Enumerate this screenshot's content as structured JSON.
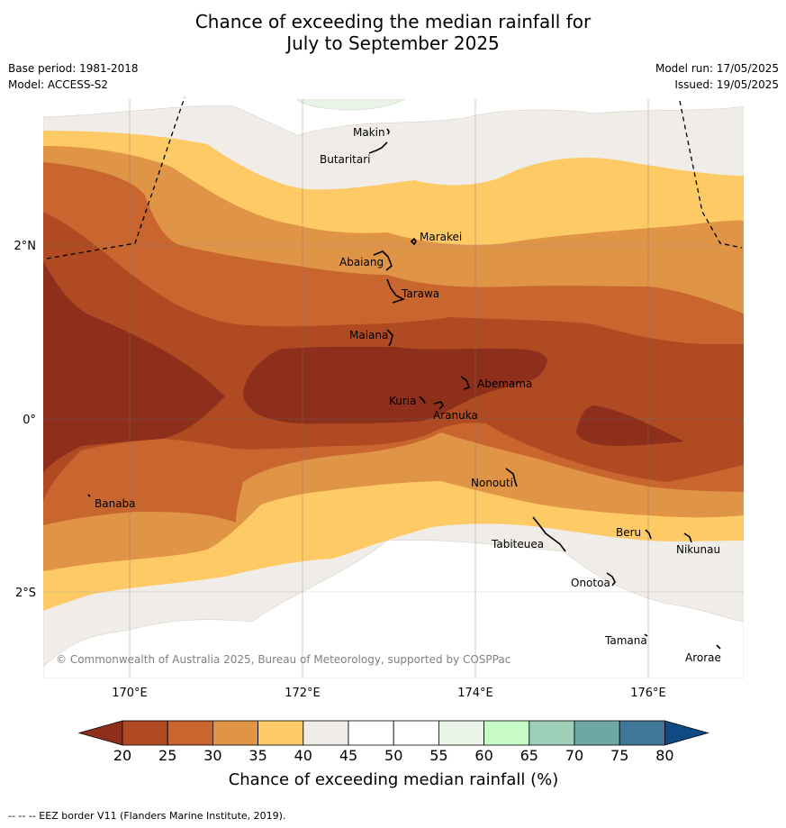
{
  "title_line1": "Chance of exceeding the median rainfall for",
  "title_line2": "July to September 2025",
  "base_period": "Base period: 1981-2018",
  "model": "Model: ACCESS-S2",
  "model_run": "Model run: 17/05/2025",
  "issued": "Issued: 19/05/2025",
  "copyright": "© Commonwealth of Australia 2025, Bureau of Meteorology, supported by COSPPac",
  "axes": {
    "lon_labels": [
      "170°E",
      "172°E",
      "174°E",
      "176°E"
    ],
    "lat_labels": [
      "2°N",
      "0°",
      "2°S"
    ]
  },
  "islands": [
    "Makin",
    "Butaritari",
    "Marakei",
    "Abaiang",
    "Tarawa",
    "Maiana",
    "Abemama",
    "Kuria",
    "Aranuka",
    "Nonouti",
    "Banaba",
    "Tabiteuea",
    "Beru",
    "Nikunau",
    "Onotoa",
    "Tamana",
    "Arorae"
  ],
  "colorbar": {
    "title": "Chance of exceeding median rainfall (%)",
    "ticks": [
      "20",
      "25",
      "30",
      "35",
      "40",
      "45",
      "50",
      "55",
      "60",
      "65",
      "70",
      "75",
      "80"
    ],
    "colors": [
      "#b04a22",
      "#c9652f",
      "#e09446",
      "#fdca66",
      "#f0ede8",
      "#ffffff",
      "#ffffff",
      "#e9f3e7",
      "#c9fbc7",
      "#9ed0b9",
      "#6fa6a6",
      "#3f7799"
    ],
    "low_color": "#8e2f1c",
    "high_color": "#0f4a85"
  },
  "footnote": "-- -- -- EEZ border V11 (Flanders Marine Institute, 2019)."
}
